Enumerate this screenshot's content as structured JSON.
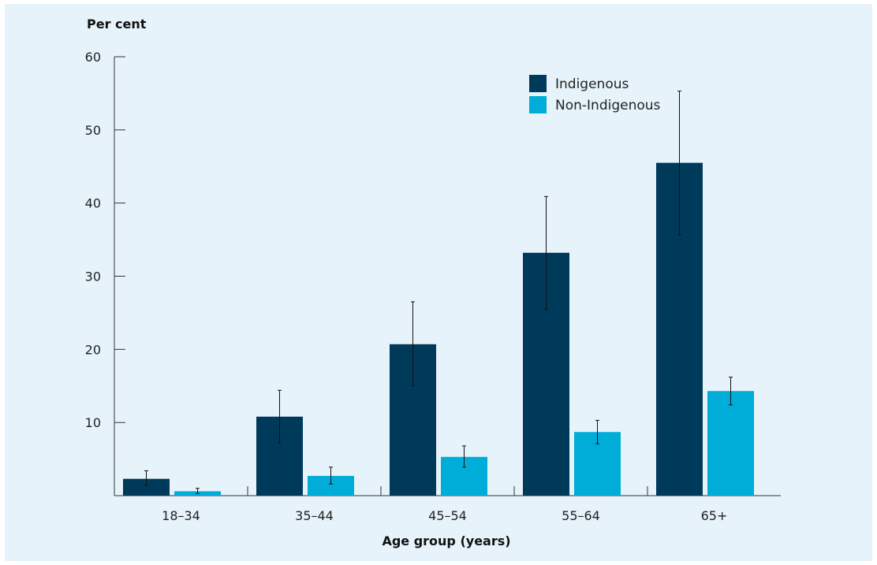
{
  "chart_data": {
    "type": "bar",
    "ylabel": "Per cent",
    "xlabel": "Age group (years)",
    "categories": [
      "18–34",
      "35–44",
      "45–54",
      "55–64",
      "65+"
    ],
    "ylim": [
      0,
      60
    ],
    "yticks": [
      10,
      20,
      30,
      40,
      50,
      60
    ],
    "legend_position": "top-right",
    "grid": false,
    "series": [
      {
        "name": "Indigenous",
        "color": "#003a5a",
        "values": [
          2.3,
          10.8,
          20.7,
          33.2,
          45.5
        ],
        "error_low": [
          1.4,
          7.2,
          15.0,
          25.5,
          35.7
        ],
        "error_high": [
          3.4,
          14.4,
          26.5,
          40.9,
          55.3
        ]
      },
      {
        "name": "Non-Indigenous",
        "color": "#00acd8",
        "values": [
          0.6,
          2.7,
          5.3,
          8.7,
          14.3
        ],
        "error_low": [
          0.3,
          1.6,
          3.9,
          7.1,
          12.4
        ],
        "error_high": [
          1.0,
          3.9,
          6.8,
          10.3,
          16.2
        ]
      }
    ]
  }
}
